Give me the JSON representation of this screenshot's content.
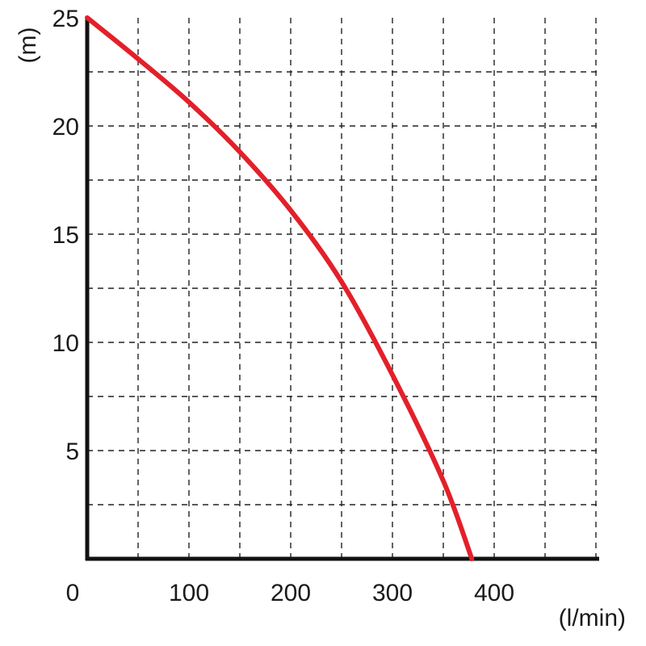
{
  "chart_data": {
    "type": "line",
    "title": "",
    "xlabel": "(l/min)",
    "ylabel": "(m)",
    "xlim": [
      0,
      500
    ],
    "ylim": [
      0,
      25
    ],
    "x_ticks": [
      0,
      100,
      200,
      300,
      400
    ],
    "y_ticks": [
      5,
      10,
      15,
      20,
      25
    ],
    "x_grid_step": 50,
    "y_grid_step": 2.5,
    "grid": true,
    "grid_style": "dashed",
    "series": [
      {
        "color": "#e3202a",
        "points": [
          [
            0,
            25
          ],
          [
            50,
            23.1
          ],
          [
            100,
            21.1
          ],
          [
            150,
            18.8
          ],
          [
            200,
            16.1
          ],
          [
            250,
            12.8
          ],
          [
            300,
            8.5
          ],
          [
            350,
            3.6
          ],
          [
            378,
            0
          ]
        ]
      }
    ]
  }
}
